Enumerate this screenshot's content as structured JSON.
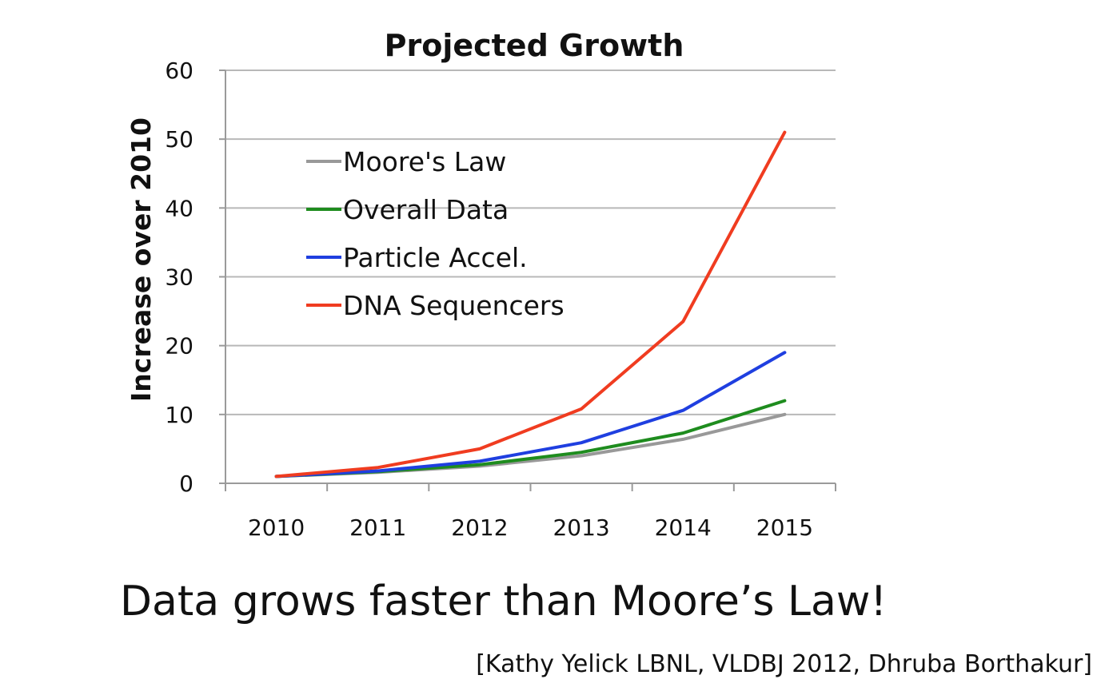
{
  "chart_data": {
    "type": "line",
    "title": "Projected Growth",
    "xlabel": "",
    "ylabel": "Increase over 2010",
    "x": [
      "2010",
      "2011",
      "2012",
      "2013",
      "2014",
      "2015"
    ],
    "ylim": [
      0,
      60
    ],
    "yticks": [
      "0",
      "10",
      "20",
      "30",
      "40",
      "50",
      "60"
    ],
    "grid": true,
    "legend_position": "top-left",
    "series": [
      {
        "name": "Moore's Law",
        "color": "#999999",
        "values": [
          1,
          1.6,
          2.5,
          4,
          6.4,
          10
        ]
      },
      {
        "name": "Overall Data",
        "color": "#1e8c1e",
        "values": [
          1,
          1.7,
          2.7,
          4.5,
          7.3,
          12
        ]
      },
      {
        "name": "Particle Accel.",
        "color": "#1f3fe0",
        "values": [
          1,
          1.8,
          3.2,
          5.9,
          10.6,
          19
        ]
      },
      {
        "name": "DNA Sequencers",
        "color": "#f03c20",
        "values": [
          1,
          2.3,
          5,
          10.8,
          23.5,
          51
        ]
      }
    ]
  },
  "caption": "Data grows faster than Moore’s Law!",
  "citation": "[Kathy Yelick LBNL, VLDBJ 2012, Dhruba Borthakur]"
}
